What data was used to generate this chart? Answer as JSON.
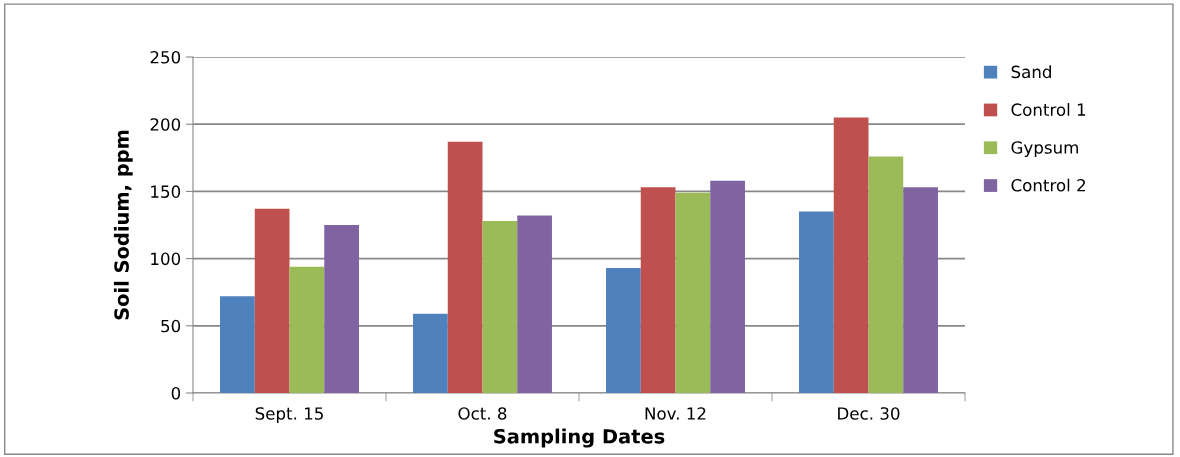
{
  "chart_data": {
    "type": "bar",
    "xlabel": "Sampling Dates",
    "ylabel": "Soil Sodium, ppm",
    "categories": [
      "Sept. 15",
      "Oct. 8",
      "Nov. 12",
      "Dec. 30"
    ],
    "series": [
      {
        "name": "Sand",
        "color": "#4f81bd",
        "values": [
          72,
          59,
          93,
          135
        ]
      },
      {
        "name": "Control 1",
        "color": "#c0504d",
        "values": [
          137,
          187,
          153,
          205
        ]
      },
      {
        "name": "Gypsum",
        "color": "#9bbb59",
        "values": [
          94,
          128,
          149,
          176
        ]
      },
      {
        "name": "Control 2",
        "color": "#8064a2",
        "values": [
          125,
          132,
          158,
          153
        ]
      }
    ],
    "ylim": [
      0,
      250
    ],
    "yticks": [
      0,
      50,
      100,
      150,
      200,
      250
    ],
    "grid": "y",
    "legend": "right"
  }
}
